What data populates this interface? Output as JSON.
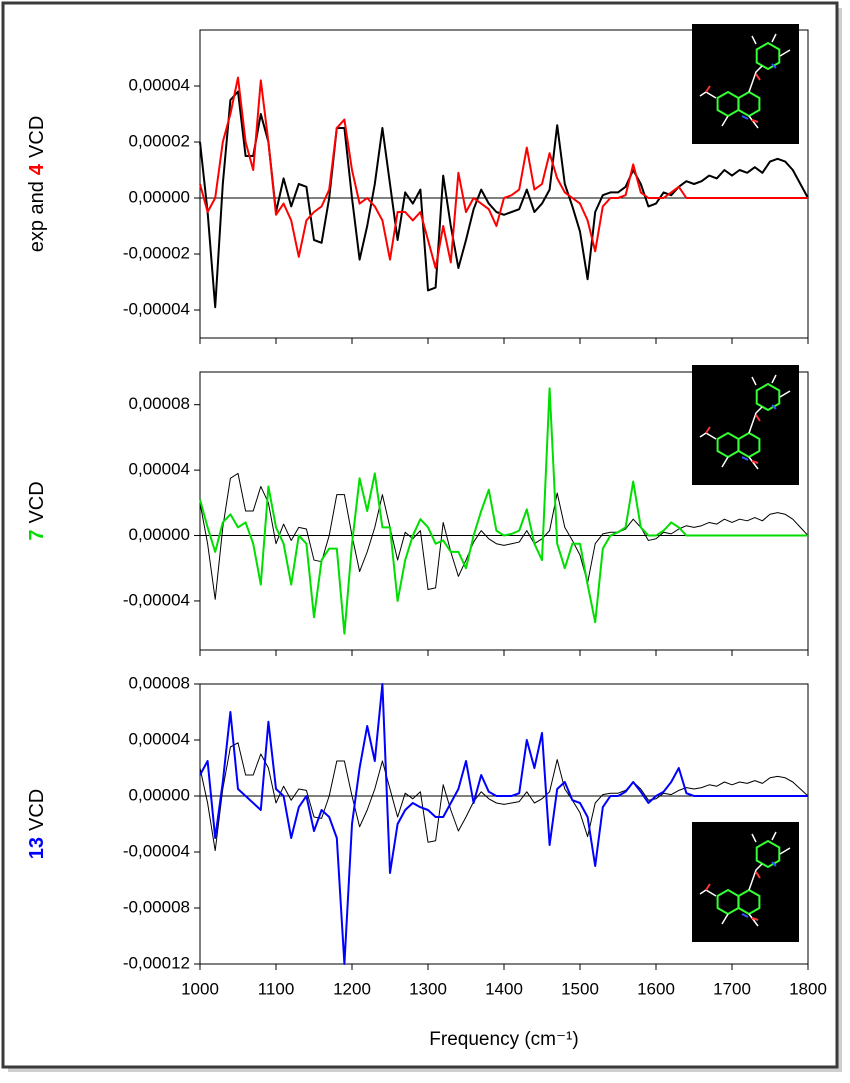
{
  "chart_data": [
    {
      "type": "line",
      "ylabel": [
        {
          "text": "exp and",
          "color": "#000000"
        },
        {
          "text": "4",
          "color": "#ff0000"
        },
        {
          "text": "VCD",
          "color": "#000000"
        }
      ],
      "xlim": [
        1000,
        1800
      ],
      "xticks": [
        1000,
        1100,
        1200,
        1300,
        1400,
        1500,
        1600,
        1700,
        1800
      ],
      "xtick_labels": false,
      "ylim": [
        -5e-05,
        6e-05
      ],
      "yticks": [
        {
          "value": -4e-05,
          "label": "-0,00004"
        },
        {
          "value": -2e-05,
          "label": "-0,00002"
        },
        {
          "value": 0,
          "label": "0,00000"
        },
        {
          "value": 2e-05,
          "label": "0,00002"
        },
        {
          "value": 4e-05,
          "label": "0,00004"
        }
      ],
      "x": [
        1000,
        1010,
        1020,
        1030,
        1040,
        1050,
        1060,
        1070,
        1080,
        1090,
        1100,
        1110,
        1120,
        1130,
        1140,
        1150,
        1160,
        1170,
        1180,
        1190,
        1200,
        1210,
        1220,
        1230,
        1240,
        1250,
        1260,
        1270,
        1280,
        1290,
        1300,
        1310,
        1320,
        1330,
        1340,
        1350,
        1360,
        1370,
        1380,
        1390,
        1400,
        1410,
        1420,
        1430,
        1440,
        1450,
        1460,
        1470,
        1480,
        1490,
        1500,
        1510,
        1520,
        1530,
        1540,
        1550,
        1560,
        1570,
        1580,
        1590,
        1600,
        1610,
        1620,
        1630,
        1640,
        1650,
        1660,
        1670,
        1680,
        1690,
        1700,
        1710,
        1720,
        1730,
        1740,
        1750,
        1760,
        1770,
        1780,
        1790,
        1800
      ],
      "series": [
        {
          "color": "#000000",
          "line_width": 2,
          "values": [
            2e-05,
            -5e-06,
            -3.9e-05,
            5e-06,
            3.5e-05,
            3.8e-05,
            1.5e-05,
            1.5e-05,
            3e-05,
            2e-05,
            -5e-06,
            7e-06,
            -3e-06,
            5e-06,
            4e-06,
            -1.5e-05,
            -1.6e-05,
            0,
            2.5e-05,
            2.5e-05,
            0,
            -2.2e-05,
            -1e-05,
            5e-06,
            2.5e-05,
            5e-06,
            -1.5e-05,
            2e-06,
            -2e-06,
            3e-06,
            -3.3e-05,
            -3.2e-05,
            8e-06,
            -1e-05,
            -2.5e-05,
            -1.5e-05,
            -4e-06,
            3e-06,
            -2e-06,
            -5e-06,
            -6e-06,
            -5e-06,
            -4e-06,
            3e-06,
            -5e-06,
            -2e-06,
            3e-06,
            2.6e-05,
            5e-06,
            -3e-06,
            -1.2e-05,
            -2.9e-05,
            -5e-06,
            1e-06,
            2e-06,
            2e-06,
            4e-06,
            1e-05,
            5e-06,
            -3e-06,
            -2e-06,
            2e-06,
            1e-06,
            4e-06,
            6e-06,
            5e-06,
            6e-06,
            8e-06,
            7e-06,
            1e-05,
            8e-06,
            1e-05,
            9e-06,
            1.1e-05,
            9e-06,
            1.3e-05,
            1.4e-05,
            1.3e-05,
            1e-05,
            5e-06,
            0
          ]
        },
        {
          "color": "#ff0000",
          "line_width": 2,
          "values": [
            5e-06,
            -5e-06,
            0,
            2e-05,
            3e-05,
            4.3e-05,
            2e-05,
            1e-05,
            4.2e-05,
            2e-05,
            -6e-06,
            -2e-06,
            -8e-06,
            -2.1e-05,
            -8e-06,
            -5e-06,
            -3e-06,
            3e-06,
            2.5e-05,
            2.8e-05,
            1e-05,
            -2e-06,
            0,
            -3e-06,
            -8e-06,
            -2.2e-05,
            -5e-06,
            -5e-06,
            -8e-06,
            -5e-06,
            -1.5e-05,
            -2.5e-05,
            -1e-05,
            -2.3e-05,
            9e-06,
            -5e-06,
            0,
            -2e-06,
            -4e-06,
            -1e-05,
            0,
            1e-06,
            3e-06,
            1.8e-05,
            3e-06,
            5e-06,
            1.6e-05,
            7e-06,
            2e-06,
            0,
            -2e-06,
            -8e-06,
            -1.9e-05,
            -3e-06,
            0,
            0,
            1e-06,
            1.2e-05,
            2e-06,
            0,
            0,
            0,
            2e-06,
            4e-06,
            0,
            0,
            0,
            0,
            0,
            0,
            0,
            0,
            0,
            0,
            0,
            0,
            0,
            0,
            0,
            0,
            0
          ]
        }
      ],
      "logo_y": 24
    },
    {
      "type": "line",
      "ylabel": [
        {
          "text": "7",
          "color": "#00dd00"
        },
        {
          "text": "VCD",
          "color": "#000000"
        }
      ],
      "xlim": [
        1000,
        1800
      ],
      "xticks": [
        1000,
        1100,
        1200,
        1300,
        1400,
        1500,
        1600,
        1700,
        1800
      ],
      "xtick_labels": false,
      "ylim": [
        -7e-05,
        0.0001
      ],
      "yticks": [
        {
          "value": -4e-05,
          "label": "-0,00004"
        },
        {
          "value": 0,
          "label": "0,00000"
        },
        {
          "value": 4e-05,
          "label": "0,00004"
        },
        {
          "value": 8e-05,
          "label": "0,00008"
        }
      ],
      "x": [
        1000,
        1010,
        1020,
        1030,
        1040,
        1050,
        1060,
        1070,
        1080,
        1090,
        1100,
        1110,
        1120,
        1130,
        1140,
        1150,
        1160,
        1170,
        1180,
        1190,
        1200,
        1210,
        1220,
        1230,
        1240,
        1250,
        1260,
        1270,
        1280,
        1290,
        1300,
        1310,
        1320,
        1330,
        1340,
        1350,
        1360,
        1370,
        1380,
        1390,
        1400,
        1410,
        1420,
        1430,
        1440,
        1450,
        1460,
        1470,
        1480,
        1490,
        1500,
        1510,
        1520,
        1530,
        1540,
        1550,
        1560,
        1570,
        1580,
        1590,
        1600,
        1610,
        1620,
        1630,
        1640,
        1650,
        1660,
        1670,
        1680,
        1690,
        1700,
        1710,
        1720,
        1730,
        1740,
        1750,
        1760,
        1770,
        1780,
        1790,
        1800
      ],
      "series": [
        {
          "color": "#000000",
          "line_width": 1,
          "values": [
            2e-05,
            -5e-06,
            -3.9e-05,
            5e-06,
            3.5e-05,
            3.8e-05,
            1.5e-05,
            1.5e-05,
            3e-05,
            2e-05,
            -5e-06,
            7e-06,
            -3e-06,
            5e-06,
            4e-06,
            -1.5e-05,
            -1.6e-05,
            0,
            2.5e-05,
            2.5e-05,
            0,
            -2.2e-05,
            -1e-05,
            5e-06,
            2.5e-05,
            5e-06,
            -1.5e-05,
            2e-06,
            -2e-06,
            3e-06,
            -3.3e-05,
            -3.2e-05,
            8e-06,
            -1e-05,
            -2.5e-05,
            -1.5e-05,
            -4e-06,
            3e-06,
            -2e-06,
            -5e-06,
            -6e-06,
            -5e-06,
            -4e-06,
            3e-06,
            -5e-06,
            -2e-06,
            3e-06,
            2.6e-05,
            5e-06,
            -3e-06,
            -1.2e-05,
            -2.9e-05,
            -5e-06,
            1e-06,
            2e-06,
            2e-06,
            4e-06,
            1e-05,
            5e-06,
            -3e-06,
            -2e-06,
            2e-06,
            1e-06,
            4e-06,
            6e-06,
            5e-06,
            6e-06,
            8e-06,
            7e-06,
            1e-05,
            8e-06,
            1e-05,
            9e-06,
            1.1e-05,
            9e-06,
            1.3e-05,
            1.4e-05,
            1.3e-05,
            1e-05,
            5e-06,
            0
          ]
        },
        {
          "color": "#00dd00",
          "line_width": 2,
          "values": [
            2.2e-05,
            5e-06,
            -1e-05,
            8e-06,
            1.3e-05,
            5e-06,
            8e-06,
            -5e-06,
            -3e-05,
            3e-05,
            5e-06,
            -5e-06,
            -3e-05,
            0,
            -5e-06,
            -5e-05,
            -1.5e-05,
            -8e-06,
            -8e-06,
            -6e-05,
            -5e-06,
            3.5e-05,
            1.5e-05,
            3.8e-05,
            5e-06,
            5e-06,
            -4e-05,
            -1.5e-05,
            0,
            1e-05,
            5e-06,
            -5e-06,
            -3e-06,
            -1e-05,
            -1e-05,
            -2e-05,
            0,
            1.5e-05,
            2.8e-05,
            3e-06,
            0,
            1e-06,
            3e-06,
            1.6e-05,
            -5e-06,
            -1.5e-05,
            9e-05,
            -5e-06,
            -2e-05,
            -5e-06,
            -5e-06,
            -3e-05,
            -5.3e-05,
            -8e-06,
            0,
            2e-06,
            5e-06,
            3.3e-05,
            5e-06,
            0,
            0,
            3e-06,
            8e-06,
            5e-06,
            0,
            0,
            0,
            0,
            0,
            0,
            0,
            0,
            0,
            0,
            0,
            0,
            0,
            0,
            0,
            0,
            0
          ]
        }
      ],
      "logo_y": 365
    },
    {
      "type": "line",
      "ylabel": [
        {
          "text": "13",
          "color": "#0000ff"
        },
        {
          "text": "VCD",
          "color": "#000000"
        }
      ],
      "xlabel": "Frequency (cm⁻¹)",
      "xlim": [
        1000,
        1800
      ],
      "xticks": [
        1000,
        1100,
        1200,
        1300,
        1400,
        1500,
        1600,
        1700,
        1800
      ],
      "xtick_labels": true,
      "ylim": [
        -0.00012,
        8e-05
      ],
      "yticks": [
        {
          "value": -0.00012,
          "label": "-0,00012"
        },
        {
          "value": -8e-05,
          "label": "-0,00008"
        },
        {
          "value": -4e-05,
          "label": "-0,00004"
        },
        {
          "value": 0,
          "label": "0,00000"
        },
        {
          "value": 4e-05,
          "label": "0,00004"
        },
        {
          "value": 8e-05,
          "label": "0,00008"
        }
      ],
      "x": [
        1000,
        1010,
        1020,
        1030,
        1040,
        1050,
        1060,
        1070,
        1080,
        1090,
        1100,
        1110,
        1120,
        1130,
        1140,
        1150,
        1160,
        1170,
        1180,
        1190,
        1200,
        1210,
        1220,
        1230,
        1240,
        1250,
        1260,
        1270,
        1280,
        1290,
        1300,
        1310,
        1320,
        1330,
        1340,
        1350,
        1360,
        1370,
        1380,
        1390,
        1400,
        1410,
        1420,
        1430,
        1440,
        1450,
        1460,
        1470,
        1480,
        1490,
        1500,
        1510,
        1520,
        1530,
        1540,
        1550,
        1560,
        1570,
        1580,
        1590,
        1600,
        1610,
        1620,
        1630,
        1640,
        1650,
        1660,
        1670,
        1680,
        1690,
        1700,
        1710,
        1720,
        1730,
        1740,
        1750,
        1760,
        1770,
        1780,
        1790,
        1800
      ],
      "series": [
        {
          "color": "#000000",
          "line_width": 1,
          "values": [
            2e-05,
            -5e-06,
            -3.9e-05,
            5e-06,
            3.5e-05,
            3.8e-05,
            1.5e-05,
            1.5e-05,
            3e-05,
            2e-05,
            -5e-06,
            7e-06,
            -3e-06,
            5e-06,
            4e-06,
            -1.5e-05,
            -1.6e-05,
            0,
            2.5e-05,
            2.5e-05,
            0,
            -2.2e-05,
            -1e-05,
            5e-06,
            2.5e-05,
            5e-06,
            -1.5e-05,
            2e-06,
            -2e-06,
            3e-06,
            -3.3e-05,
            -3.2e-05,
            8e-06,
            -1e-05,
            -2.5e-05,
            -1.5e-05,
            -4e-06,
            3e-06,
            -2e-06,
            -5e-06,
            -6e-06,
            -5e-06,
            -4e-06,
            3e-06,
            -5e-06,
            -2e-06,
            3e-06,
            2.6e-05,
            5e-06,
            -3e-06,
            -1.2e-05,
            -2.9e-05,
            -5e-06,
            1e-06,
            2e-06,
            2e-06,
            4e-06,
            1e-05,
            5e-06,
            -3e-06,
            -2e-06,
            2e-06,
            1e-06,
            4e-06,
            6e-06,
            5e-06,
            6e-06,
            8e-06,
            7e-06,
            1e-05,
            8e-06,
            1e-05,
            9e-06,
            1.1e-05,
            9e-06,
            1.3e-05,
            1.4e-05,
            1.3e-05,
            1e-05,
            5e-06,
            0
          ]
        },
        {
          "color": "#0000ff",
          "line_width": 2,
          "values": [
            1.5e-05,
            2.5e-05,
            -3e-05,
            1e-05,
            6e-05,
            5e-06,
            0,
            -5e-06,
            -1e-05,
            5.3e-05,
            5e-06,
            0,
            -3e-05,
            -8e-06,
            0,
            -2.5e-05,
            -1e-05,
            -1.5e-05,
            -3e-05,
            -0.00012,
            -2e-05,
            2e-05,
            5e-05,
            2.5e-05,
            8e-05,
            -5.5e-05,
            -2e-05,
            -1e-05,
            -5e-06,
            -8e-06,
            -1e-05,
            -1.5e-05,
            -1.5e-05,
            -5e-06,
            5e-06,
            2.5e-05,
            -5e-06,
            1.5e-05,
            3e-06,
            0,
            0,
            0,
            2e-06,
            4e-05,
            2e-05,
            4.5e-05,
            -3.5e-05,
            5e-06,
            1e-05,
            -3e-06,
            -5e-06,
            -1.5e-05,
            -5e-05,
            -8e-06,
            0,
            0,
            3e-06,
            1e-05,
            3e-06,
            -5e-06,
            0,
            3e-06,
            1e-05,
            2e-05,
            2e-06,
            0,
            0,
            0,
            0,
            0,
            0,
            0,
            0,
            0,
            0,
            0,
            0,
            0,
            0,
            0,
            0
          ]
        }
      ],
      "logo_y": 822
    }
  ]
}
